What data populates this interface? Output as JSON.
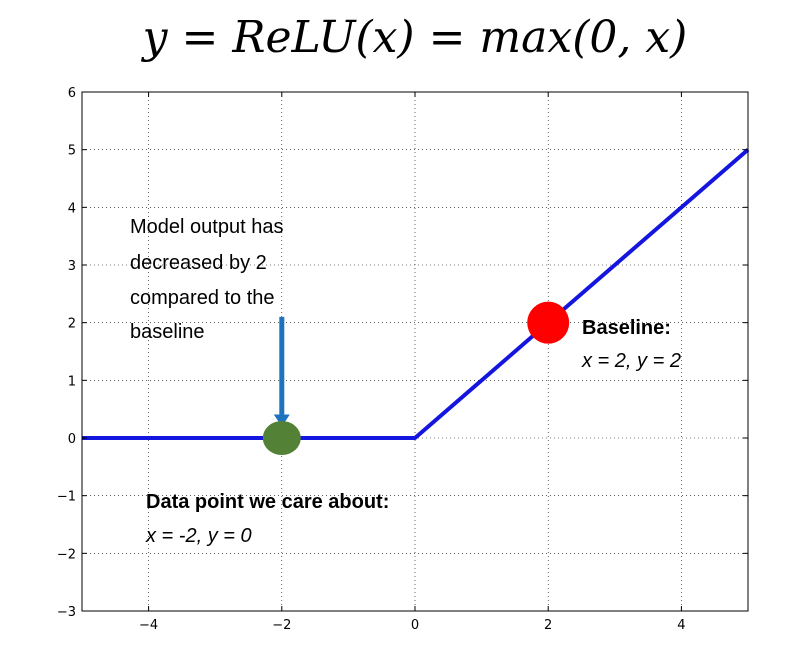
{
  "chart_data": {
    "type": "line",
    "title": "y = ReLU(x) = max(0, x)",
    "xlabel": "",
    "ylabel": "",
    "xlim": [
      -5,
      5
    ],
    "ylim": [
      -3,
      6
    ],
    "x_ticks": [
      -4,
      -2,
      0,
      2,
      4
    ],
    "x_tick_labels": [
      "−4",
      "−2",
      "0",
      "2",
      "4"
    ],
    "y_ticks": [
      -3,
      -2,
      -1,
      0,
      1,
      2,
      3,
      4,
      5,
      6
    ],
    "y_tick_labels": [
      "−3",
      "−2",
      "−1",
      "0",
      "1",
      "2",
      "3",
      "4",
      "5",
      "6"
    ],
    "grid": true,
    "line_color": "#1515e0",
    "series": [
      {
        "x": [
          -5,
          -4,
          -3,
          -2,
          -1,
          0,
          1,
          2,
          3,
          4,
          5
        ],
        "y": [
          0,
          0,
          0,
          0,
          0,
          0,
          1,
          2,
          3,
          4,
          5
        ]
      }
    ],
    "points": [
      {
        "x": -2,
        "y": 0,
        "color": "#538135"
      },
      {
        "x": 2,
        "y": 2,
        "color": "#ff0000"
      }
    ],
    "arrow": {
      "x": -2,
      "y_from": 2.1,
      "y_to": 0.2,
      "color": "#1e73be"
    },
    "annotations": {
      "model_output": {
        "lines": [
          "Model output has",
          "decreased by 2",
          "compared to the",
          "baseline"
        ]
      },
      "data_point": {
        "heading": "Data point we care about:",
        "detail": "x = -2, y = 0"
      },
      "baseline": {
        "heading": "Baseline:",
        "detail": "x = 2, y = 2"
      }
    }
  }
}
